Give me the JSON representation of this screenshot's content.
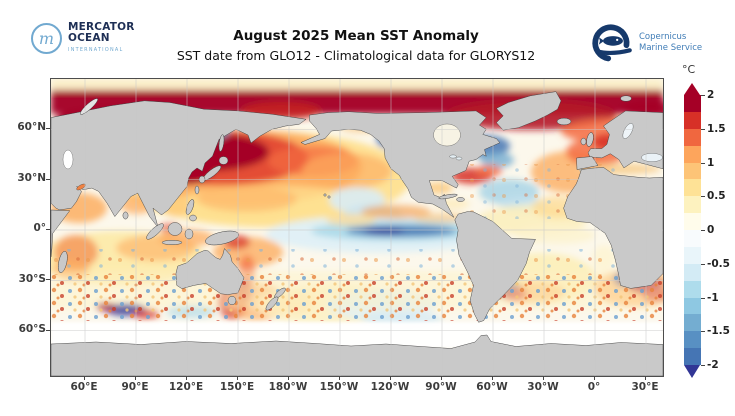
{
  "header": {
    "mercator": {
      "monogram": "m",
      "name_line1": "MERCATOR",
      "name_line2": "OCEAN",
      "tagline": "INTERNATIONAL"
    },
    "title": "August 2025 Mean SST Anomaly",
    "subtitle": "SST date from GLO12 - Climatological data for GLORYS12",
    "copernicus": {
      "line1": "Copernicus",
      "line2": "Marine Service"
    }
  },
  "axes": {
    "x_ticks": [
      "60°E",
      "90°E",
      "120°E",
      "150°E",
      "180°W",
      "150°W",
      "120°W",
      "90°W",
      "60°W",
      "30°W",
      "0°",
      "30°E"
    ],
    "y_ticks": [
      "60°N",
      "30°N",
      "0°",
      "30°S",
      "60°S"
    ]
  },
  "colorbar": {
    "unit": "°C",
    "tick_labels": [
      "2",
      "1.5",
      "1",
      "0.5",
      "0",
      "-0.5",
      "-1",
      "-1.5",
      "-2"
    ],
    "segment_colors": [
      "#a50026",
      "#d73027",
      "#f0673f",
      "#fda55c",
      "#fdc477",
      "#fee296",
      "#fdf2bf",
      "#fffceb",
      "#f8fbfd",
      "#e9f5fa",
      "#d3ebf5",
      "#aedcec",
      "#8ec8e2",
      "#74add1",
      "#5890c3",
      "#4575b4"
    ],
    "over_color": "#a50026",
    "under_color": "#313695"
  },
  "map_style": {
    "land_color": "#c9c9c9",
    "ocean_base": "#fcf8ec",
    "frame_color": "#4d4d4d"
  },
  "chart_data": {
    "type": "heatmap",
    "title": "August 2025 Mean SST Anomaly",
    "subtitle": "SST date from GLO12 - Climatological data for GLORYS12",
    "variable": "Sea surface temperature anomaly",
    "unit": "°C",
    "projection": "equirectangular world map, Pacific-centered (left/right edge ≈ 40°E)",
    "x_tick_labels": [
      "60°E",
      "90°E",
      "120°E",
      "150°E",
      "180°W",
      "150°W",
      "120°W",
      "90°W",
      "60°W",
      "30°W",
      "0°",
      "30°E"
    ],
    "y_tick_labels": [
      "60°N",
      "30°N",
      "0°",
      "30°S",
      "60°S"
    ],
    "colorbar": {
      "min": -2,
      "max": 2,
      "ticks": [
        2,
        1.5,
        1,
        0.5,
        0,
        -0.5,
        -1,
        -1.5,
        -2
      ],
      "band_step": 0.25,
      "palette_top_to_bottom": [
        "#a50026",
        "#d73027",
        "#f0673f",
        "#fda55c",
        "#fdc477",
        "#fee296",
        "#fdf2bf",
        "#fffceb",
        "#f8fbfd",
        "#e9f5fa",
        "#d3ebf5",
        "#aedcec",
        "#8ec8e2",
        "#74add1",
        "#5890c3",
        "#4575b4"
      ],
      "over_arrow_color": "#a50026",
      "under_arrow_color": "#313695"
    },
    "land_color": "#c9c9c9",
    "grid": true,
    "notable_features": [
      {
        "region": "Arctic Ocean (pan-Arctic band)",
        "anomaly_degc": "+1.5 to >+2"
      },
      {
        "region": "Northwest Pacific east of Japan (Kuroshio-Oyashio)",
        "anomaly_degc": ">+2 (strongest warm pool)"
      },
      {
        "region": "Central North Pacific",
        "anomaly_degc": "+1 to +2"
      },
      {
        "region": "Bering Sea",
        "anomaly_degc": "-0.5 to -1 (cool patch)"
      },
      {
        "region": "Equatorial central-eastern Pacific",
        "anomaly_degc": "-0.5 to -1.5 (La Niña-like cold tongue)"
      },
      {
        "region": "Subpolar North Atlantic south of Greenland",
        "anomaly_degc": "-1 to -1.5"
      },
      {
        "region": "Eastern North Atlantic near UK / Biscay",
        "anomaly_degc": "+1 to +2"
      },
      {
        "region": "Mediterranean Sea",
        "anomaly_degc": "+0.5 to +1"
      },
      {
        "region": "Arabian Sea and Bay of Bengal",
        "anomaly_degc": "+0.5 to +1"
      },
      {
        "region": "South Indian Ocean 10-40°S",
        "anomaly_degc": "patchy +0.5 to +1 with eddies"
      },
      {
        "region": "Tasman Sea / around New Zealand",
        "anomaly_degc": "+1 to +2"
      },
      {
        "region": "Agulhas region south of Africa",
        "anomaly_degc": "mixed eddies -2 to +2"
      },
      {
        "region": "Southwest Atlantic (Brazil-Malvinas confluence)",
        "anomaly_degc": "mixed eddies -2 to +2"
      },
      {
        "region": "Southern Ocean 55-70°S",
        "anomaly_degc": "near 0 (white band)"
      }
    ]
  }
}
